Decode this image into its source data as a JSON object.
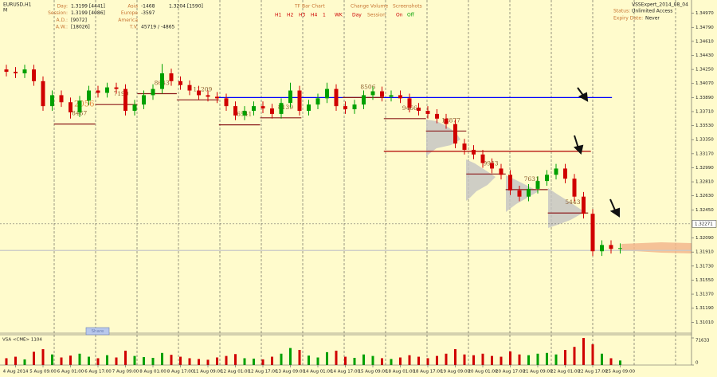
{
  "header": {
    "symbol": "EURUSD,H1",
    "mode": "M"
  },
  "stats": [
    {
      "label": "Day:",
      "value": "1.3199 [4441]"
    },
    {
      "label": "Session:",
      "value": "1.3199 [4086]"
    },
    {
      "label": "A.D.:",
      "value": "[9072]"
    },
    {
      "label": "A.W.:",
      "value": "[18026]"
    }
  ],
  "sessions": [
    {
      "label": "Asia",
      "value": "-1468"
    },
    {
      "label": "Europe",
      "value": "-3597"
    },
    {
      "label": "America"
    },
    {
      "label": "T.V.",
      "value": "45719 / -4865"
    }
  ],
  "last_bar": "1.3204 [1590]",
  "controls": {
    "tf_title": "TF Bar Chart",
    "tf_buttons": [
      "H1",
      "H2",
      "H3",
      "H4",
      "1",
      "WK"
    ],
    "cv_title": "Change Volume",
    "cv_buttons": [
      "Day",
      "Session"
    ],
    "ss_title": "Screenshots",
    "ss_buttons": [
      "On",
      "Off"
    ]
  },
  "expert": {
    "name": "VSSExpert_2014_08_04",
    "status_label": "Status:",
    "status": "Unlimited Access",
    "expiry_label": "Expiry Date:",
    "expiry": "Never"
  },
  "share_button": "Share",
  "chart_data": {
    "type": "candlestick",
    "categories": [
      null,
      "4 Aug 2014",
      null,
      null,
      "5 Aug 09:00",
      null,
      null,
      "6 Aug 01:00",
      null,
      null,
      "6 Aug 17:00",
      null,
      null,
      "7 Aug 09:00",
      null,
      null,
      "8 Aug 01:00",
      null,
      null,
      "8 Aug 17:00",
      null,
      null,
      "11 Aug 09:00",
      null,
      null,
      "12 Aug 01:00",
      null,
      null,
      "12 Aug 17:00",
      null,
      null,
      "13 Aug 09:00",
      null,
      null,
      "14 Aug 01:00",
      null,
      null,
      "14 Aug 17:00",
      null,
      null,
      "15 Aug 09:00",
      null,
      null,
      "18 Aug 01:00",
      null,
      null,
      "18 Aug 17:00",
      null,
      null,
      "19 Aug 09:00",
      null,
      null,
      "20 Aug 01:00",
      null,
      null,
      "20 Aug 17:00",
      null,
      null,
      "21 Aug 09:00",
      null,
      null,
      "22 Aug 01:00",
      null,
      null,
      "22 Aug 17:00",
      null,
      null,
      "25 Aug 09:00"
    ],
    "open": [
      1.3425,
      1.3422,
      1.342,
      1.3425,
      1.341,
      1.3378,
      1.3392,
      1.3383,
      1.337,
      1.3385,
      1.3398,
      1.3395,
      1.3402,
      1.34,
      1.3372,
      1.338,
      1.3392,
      1.34,
      1.342,
      1.341,
      1.3405,
      1.3398,
      1.3392,
      1.339,
      1.3388,
      1.3378,
      1.3366,
      1.3372,
      1.3378,
      1.3375,
      1.3368,
      1.3382,
      1.3398,
      1.3372,
      1.338,
      1.3388,
      1.34,
      1.3378,
      1.3374,
      1.338,
      1.3392,
      1.3397,
      1.339,
      1.3392,
      1.3388,
      1.3376,
      1.3372,
      1.3368,
      1.3362,
      1.3355,
      1.333,
      1.3322,
      1.3316,
      1.3305,
      1.3298,
      1.329,
      1.327,
      1.3262,
      1.3272,
      1.3282,
      1.329,
      1.3298,
      1.3285,
      1.3262,
      1.324,
      1.3192,
      1.32,
      1.3195
    ],
    "high": [
      1.3431,
      1.3428,
      1.3431,
      1.3431,
      1.3416,
      1.3398,
      1.3398,
      1.3389,
      1.3391,
      1.3404,
      1.3404,
      1.3408,
      1.3408,
      1.3406,
      1.3386,
      1.3398,
      1.3406,
      1.3432,
      1.3426,
      1.3416,
      1.3411,
      1.3404,
      1.3398,
      1.3396,
      1.3394,
      1.3384,
      1.3378,
      1.3384,
      1.3384,
      1.3381,
      1.3388,
      1.3408,
      1.3404,
      1.3386,
      1.3394,
      1.3408,
      1.3406,
      1.3384,
      1.3386,
      1.3398,
      1.3403,
      1.3403,
      1.3398,
      1.3398,
      1.3394,
      1.3382,
      1.3378,
      1.3374,
      1.3368,
      1.3361,
      1.3336,
      1.3328,
      1.3322,
      1.3311,
      1.3304,
      1.3296,
      1.3276,
      1.3278,
      1.3288,
      1.3296,
      1.3304,
      1.3304,
      1.3291,
      1.3268,
      1.3246,
      1.3206,
      1.3206,
      1.3202
    ],
    "low": [
      1.3416,
      1.3414,
      1.3414,
      1.3404,
      1.3372,
      1.3372,
      1.3377,
      1.3362,
      1.3364,
      1.3379,
      1.3389,
      1.3389,
      1.3394,
      1.3366,
      1.3366,
      1.3374,
      1.3386,
      1.3394,
      1.3404,
      1.3399,
      1.3392,
      1.3386,
      1.3384,
      1.3382,
      1.3372,
      1.336,
      1.336,
      1.3366,
      1.3369,
      1.3362,
      1.3362,
      1.3376,
      1.3366,
      1.3366,
      1.3374,
      1.3382,
      1.3372,
      1.3368,
      1.3368,
      1.3374,
      1.3386,
      1.3384,
      1.3384,
      1.3382,
      1.337,
      1.3366,
      1.3362,
      1.3356,
      1.3349,
      1.3324,
      1.3316,
      1.331,
      1.3299,
      1.3292,
      1.3284,
      1.3264,
      1.3256,
      1.3256,
      1.3266,
      1.3276,
      1.3284,
      1.3279,
      1.3256,
      1.3234,
      1.3186,
      1.3186,
      1.3189,
      1.3189
    ],
    "close": [
      1.3422,
      1.342,
      1.3425,
      1.341,
      1.3378,
      1.3392,
      1.3383,
      1.337,
      1.3385,
      1.3398,
      1.3395,
      1.3402,
      1.34,
      1.3372,
      1.338,
      1.3392,
      1.34,
      1.342,
      1.341,
      1.3405,
      1.3398,
      1.3392,
      1.339,
      1.3388,
      1.3378,
      1.3366,
      1.3372,
      1.3378,
      1.3375,
      1.3368,
      1.3382,
      1.3398,
      1.3372,
      1.338,
      1.3388,
      1.34,
      1.3378,
      1.3374,
      1.338,
      1.3392,
      1.3397,
      1.339,
      1.3392,
      1.3388,
      1.3376,
      1.3372,
      1.3368,
      1.3362,
      1.3355,
      1.333,
      1.3322,
      1.3316,
      1.3305,
      1.3298,
      1.329,
      1.327,
      1.3262,
      1.3272,
      1.3282,
      1.329,
      1.3298,
      1.3285,
      1.3262,
      1.324,
      1.3192,
      1.32,
      1.3195,
      1.3196
    ],
    "up_color": "#00a000",
    "down_color": "#d00000",
    "ylim": [
      1.3087,
      1.3514
    ],
    "yticks": [
      {
        "value": 1.3497,
        "label": "1.34970"
      },
      {
        "value": 1.3479,
        "label": "1.34790"
      },
      {
        "value": 1.3461,
        "label": "1.34610"
      },
      {
        "value": 1.3443,
        "label": "1.34430"
      },
      {
        "value": 1.3425,
        "label": "1.34250"
      },
      {
        "value": 1.3407,
        "label": "1.34070"
      },
      {
        "value": 1.3389,
        "label": "1.33890"
      },
      {
        "value": 1.3371,
        "label": "1.33710"
      },
      {
        "value": 1.3353,
        "label": "1.33530"
      },
      {
        "value": 1.3335,
        "label": "1.33350"
      },
      {
        "value": 1.3317,
        "label": "1.33170"
      },
      {
        "value": 1.3299,
        "label": "1.32990"
      },
      {
        "value": 1.3281,
        "label": "1.32810"
      },
      {
        "value": 1.3263,
        "label": "1.32630"
      },
      {
        "value": 1.3245,
        "label": "1.32450"
      },
      {
        "value": 1.3209,
        "label": "1.32090"
      },
      {
        "value": 1.3191,
        "label": "1.31910"
      },
      {
        "value": 1.3173,
        "label": "1.31730"
      },
      {
        "value": 1.3155,
        "label": "1.31550"
      },
      {
        "value": 1.3137,
        "label": "1.31370"
      },
      {
        "value": 1.3119,
        "label": "1.31190"
      },
      {
        "value": 1.3101,
        "label": "1.31010"
      }
    ],
    "current_price": 1.32271,
    "levels": [
      {
        "value": 1.3389,
        "color": "#0000ff",
        "from": 23.2,
        "to": 66.1
      },
      {
        "value": 1.332,
        "color": "#b00000",
        "from": 41.2,
        "to": 63.8
      },
      {
        "value": 1.3193,
        "color": "#c8c8c8"
      }
    ],
    "profiles": [
      {
        "label": 8467,
        "poc": 1.3355,
        "start": 5.2,
        "end": 9.7
      },
      {
        "label": 7190,
        "poc": 1.338,
        "start": 9.7,
        "end": 14.3
      },
      {
        "label": 8643,
        "poc": 1.3394,
        "start": 14.3,
        "end": 18.6
      },
      {
        "label": 11209,
        "poc": 1.3386,
        "start": 18.6,
        "end": 23.2
      },
      {
        "label": 6541,
        "poc": 1.3354,
        "start": 23.2,
        "end": 27.7
      },
      {
        "label": 8139,
        "poc": 1.3363,
        "start": 27.7,
        "end": 32.2
      },
      {
        "label": 8506,
        "poc": 1.3389,
        "start": 36.7,
        "end": 41.2
      },
      {
        "label": 9466,
        "poc": 1.3362,
        "start": 41.2,
        "end": 45.8
      },
      {
        "label": 12877,
        "poc": 1.3346,
        "start": 45.8,
        "end": 50.2
      },
      {
        "label": 9943,
        "poc": 1.3291,
        "start": 50.2,
        "end": 54.5
      },
      {
        "label": 7631,
        "poc": 1.3271,
        "start": 54.5,
        "end": 59.1
      },
      {
        "label": 5443,
        "poc": 1.3241,
        "start": 59.1,
        "end": 63.5
      }
    ],
    "session_volume": 2056,
    "volume": {
      "title": "VSA <CME> 1104",
      "ylim": [
        0,
        71633
      ],
      "yticks": [
        0,
        71633
      ],
      "values": [
        18000,
        22000,
        15000,
        35000,
        42000,
        28000,
        20000,
        25000,
        30000,
        22000,
        18000,
        26000,
        20000,
        38000,
        24000,
        21000,
        19000,
        32000,
        27000,
        22000,
        18000,
        16000,
        14000,
        20000,
        24000,
        29000,
        18000,
        17000,
        15000,
        22000,
        30000,
        45000,
        40000,
        25000,
        20000,
        34000,
        38000,
        22000,
        19000,
        28000,
        24000,
        18000,
        16000,
        20000,
        26000,
        22000,
        18000,
        24000,
        30000,
        42000,
        28000,
        26000,
        30000,
        24000,
        22000,
        36000,
        28000,
        26000,
        30000,
        32000,
        28000,
        40000,
        48000,
        71633,
        55000,
        30000,
        18000,
        12000
      ]
    }
  }
}
